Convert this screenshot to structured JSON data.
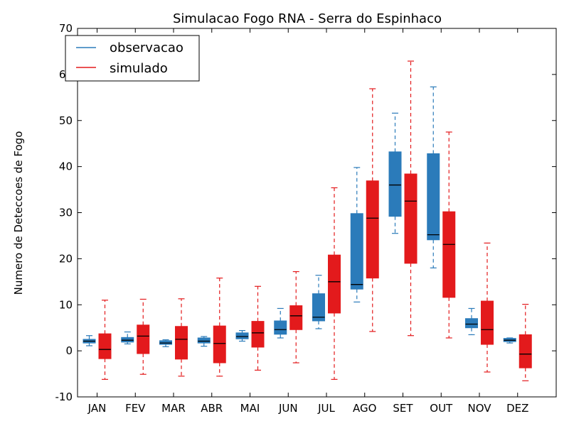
{
  "chart_data": {
    "type": "box",
    "title": "Simulacao Fogo RNA - Serra do Espinhaco",
    "xlabel": "",
    "ylabel": "Numero de Deteccoes de Fogo",
    "ylim": [
      -10,
      70
    ],
    "yticks": [
      -10,
      0,
      10,
      20,
      30,
      40,
      50,
      60,
      70
    ],
    "categories": [
      "JAN",
      "FEV",
      "MAR",
      "ABR",
      "MAI",
      "JUN",
      "JUL",
      "AGO",
      "SET",
      "OUT",
      "NOV",
      "DEZ"
    ],
    "grid": false,
    "legend_position": "top-left",
    "series": [
      {
        "name": "observacao",
        "color": "#2b7bba",
        "boxes": [
          {
            "whislo": 1.1,
            "q1": 1.7,
            "med": 2.1,
            "q3": 2.5,
            "whishi": 3.3
          },
          {
            "whislo": 1.5,
            "q1": 1.9,
            "med": 2.3,
            "q3": 2.9,
            "whishi": 4.1
          },
          {
            "whislo": 0.9,
            "q1": 1.4,
            "med": 1.7,
            "q3": 2.2,
            "whishi": 2.4
          },
          {
            "whislo": 1.0,
            "q1": 1.7,
            "med": 2.1,
            "q3": 2.8,
            "whishi": 3.1
          },
          {
            "whislo": 2.1,
            "q1": 2.6,
            "med": 3.1,
            "q3": 3.9,
            "whishi": 4.4
          },
          {
            "whislo": 2.8,
            "q1": 3.6,
            "med": 4.6,
            "q3": 6.5,
            "whishi": 9.2
          },
          {
            "whislo": 4.8,
            "q1": 6.5,
            "med": 7.3,
            "q3": 12.4,
            "whishi": 16.4
          },
          {
            "whislo": 10.6,
            "q1": 13.4,
            "med": 14.4,
            "q3": 29.8,
            "whishi": 39.8
          },
          {
            "whislo": 25.5,
            "q1": 29.2,
            "med": 36.0,
            "q3": 43.2,
            "whishi": 51.6
          },
          {
            "whislo": 18.0,
            "q1": 24.1,
            "med": 25.2,
            "q3": 42.8,
            "whishi": 57.3
          },
          {
            "whislo": 3.5,
            "q1": 5.0,
            "med": 5.8,
            "q3": 7.0,
            "whishi": 9.2
          },
          {
            "whislo": 1.7,
            "q1": 2.0,
            "med": 2.3,
            "q3": 2.7,
            "whishi": 2.8
          }
        ]
      },
      {
        "name": "simulado",
        "color": "#e31a1c",
        "boxes": [
          {
            "whislo": -6.2,
            "q1": -1.7,
            "med": 0.3,
            "q3": 3.7,
            "whishi": 11.0
          },
          {
            "whislo": -5.1,
            "q1": -0.6,
            "med": 3.2,
            "q3": 5.6,
            "whishi": 11.2
          },
          {
            "whislo": -5.5,
            "q1": -1.8,
            "med": 2.5,
            "q3": 5.3,
            "whishi": 11.3
          },
          {
            "whislo": -5.5,
            "q1": -2.6,
            "med": 1.6,
            "q3": 5.4,
            "whishi": 15.8
          },
          {
            "whislo": -4.2,
            "q1": 0.8,
            "med": 3.9,
            "q3": 6.4,
            "whishi": 14.0
          },
          {
            "whislo": -2.6,
            "q1": 4.6,
            "med": 7.6,
            "q3": 9.8,
            "whishi": 17.2
          },
          {
            "whislo": -6.2,
            "q1": 8.2,
            "med": 15.0,
            "q3": 20.8,
            "whishi": 35.4
          },
          {
            "whislo": 4.2,
            "q1": 15.8,
            "med": 28.8,
            "q3": 36.9,
            "whishi": 56.9
          },
          {
            "whislo": 3.3,
            "q1": 19.0,
            "med": 32.5,
            "q3": 38.4,
            "whishi": 62.9
          },
          {
            "whislo": 2.8,
            "q1": 11.6,
            "med": 23.1,
            "q3": 30.2,
            "whishi": 47.5
          },
          {
            "whislo": -4.6,
            "q1": 1.4,
            "med": 4.6,
            "q3": 10.8,
            "whishi": 23.4
          },
          {
            "whislo": -6.5,
            "q1": -3.7,
            "med": -0.7,
            "q3": 3.5,
            "whishi": 10.1
          }
        ]
      }
    ]
  }
}
